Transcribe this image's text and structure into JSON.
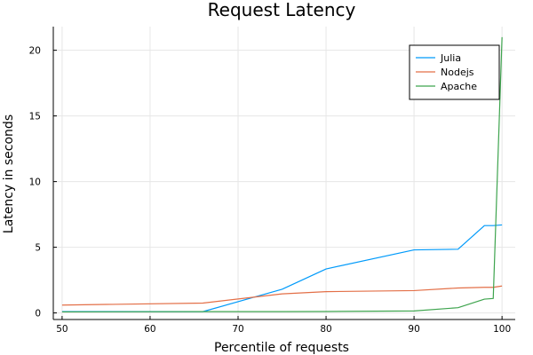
{
  "chart_data": {
    "type": "line",
    "title": "Request Latency",
    "xlabel": "Percentile of requests",
    "ylabel": "Latency in seconds",
    "xlim": [
      49,
      101.5
    ],
    "ylim": [
      -0.5,
      21.8
    ],
    "xticks": [
      50,
      60,
      70,
      80,
      90,
      100
    ],
    "yticks": [
      0,
      5,
      10,
      15,
      20
    ],
    "grid": true,
    "legend_position": "top-right",
    "series": [
      {
        "name": "Julia",
        "color": "#009AFA",
        "points": [
          [
            50,
            0.1
          ],
          [
            66,
            0.1
          ],
          [
            75,
            1.8
          ],
          [
            80,
            3.35
          ],
          [
            90,
            4.8
          ],
          [
            95,
            4.85
          ],
          [
            98,
            6.65
          ],
          [
            99,
            6.65
          ],
          [
            100,
            6.7
          ]
        ]
      },
      {
        "name": "Nodejs",
        "color": "#E36F47",
        "points": [
          [
            50,
            0.6
          ],
          [
            66,
            0.75
          ],
          [
            75,
            1.45
          ],
          [
            80,
            1.62
          ],
          [
            90,
            1.7
          ],
          [
            95,
            1.9
          ],
          [
            98,
            1.95
          ],
          [
            99,
            1.95
          ],
          [
            100,
            2.05
          ]
        ]
      },
      {
        "name": "Apache",
        "color": "#3EA44E",
        "points": [
          [
            50,
            0.08
          ],
          [
            66,
            0.1
          ],
          [
            75,
            0.1
          ],
          [
            80,
            0.11
          ],
          [
            90,
            0.15
          ],
          [
            95,
            0.4
          ],
          [
            98,
            1.05
          ],
          [
            99,
            1.1
          ],
          [
            100,
            21.0
          ]
        ]
      }
    ]
  }
}
